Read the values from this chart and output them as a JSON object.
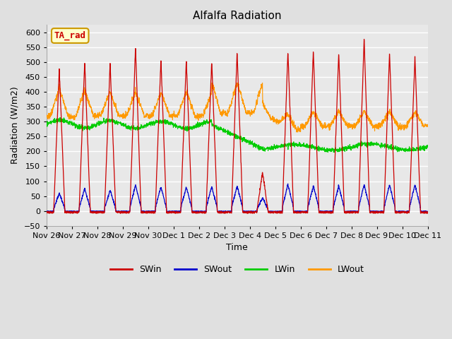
{
  "title": "Alfalfa Radiation",
  "xlabel": "Time",
  "ylabel": "Radiation (W/m2)",
  "ylim": [
    -50,
    625
  ],
  "yticks": [
    -50,
    0,
    50,
    100,
    150,
    200,
    250,
    300,
    350,
    400,
    450,
    500,
    550,
    600
  ],
  "background_color": "#e0e0e0",
  "plot_bg_color": "#e8e8e8",
  "grid_color": "white",
  "legend_items": [
    "SWin",
    "SWout",
    "LWin",
    "LWout"
  ],
  "legend_colors": [
    "#cc0000",
    "#0000cc",
    "#00cc00",
    "#ff9900"
  ],
  "annotation_text": "TA_rad",
  "annotation_bg": "#ffffcc",
  "annotation_border": "#cc9900",
  "annotation_text_color": "#cc0000",
  "xticklabels": [
    "Nov 26",
    "Nov 27",
    "Nov 28",
    "Nov 29",
    "Nov 30",
    "Dec 1",
    "Dec 2",
    "Dec 3",
    "Dec 4",
    "Dec 5",
    "Dec 6",
    "Dec 7",
    "Dec 8",
    "Dec 9",
    "Dec 10",
    "Dec 11"
  ],
  "n_days": 15,
  "points_per_day": 144,
  "seed": 42,
  "figsize": [
    6.4,
    4.8
  ],
  "dpi": 100
}
